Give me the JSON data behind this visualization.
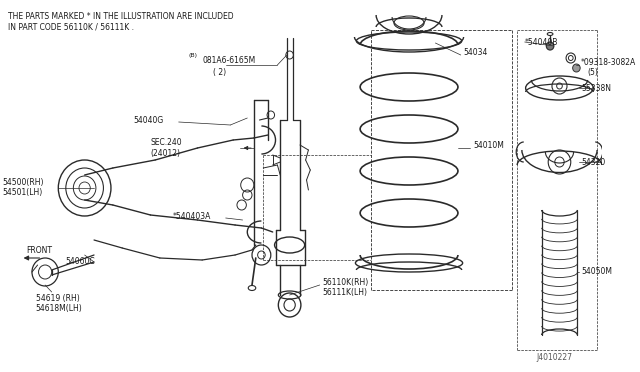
{
  "bg_color": "#ffffff",
  "header_text1": "THE PARTS MARKED * IN THE ILLUSTRATION ARE INCLUDED",
  "header_text2": "IN PART CODE 56110K / 56111K .",
  "footer_text": "J4010227",
  "line_color": "#2a2a2a",
  "text_color": "#1a1a1a",
  "fig_w": 6.4,
  "fig_h": 3.72,
  "dpi": 100
}
